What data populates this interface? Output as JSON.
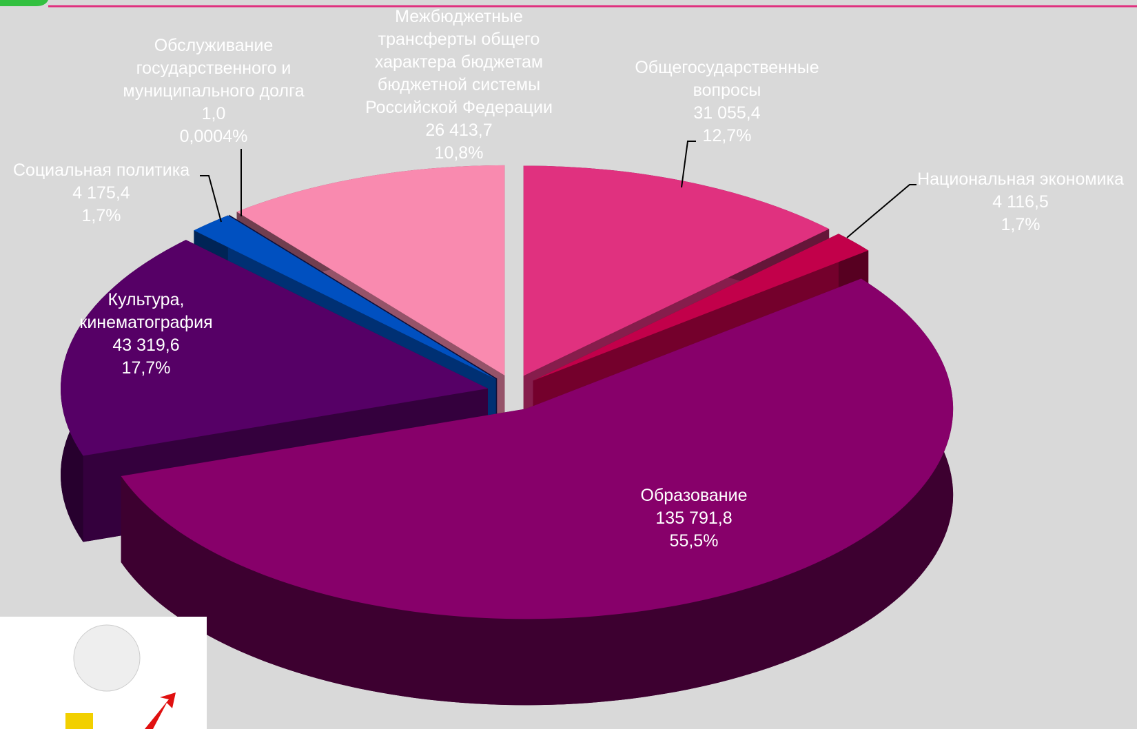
{
  "chart_data": {
    "type": "pie3d",
    "categories": [
      "Общегосударственные вопросы",
      "Национальная экономика",
      "Образование",
      "Культура, кинематография",
      "Социальная политика",
      "Обслуживание государственного и муниципального долга",
      "Межбюджетные трансферты общего характера бюджетам бюджетной системы Российской Федерации"
    ],
    "amounts": [
      31055.4,
      4116.5,
      135791.8,
      43319.6,
      4175.4,
      1.0,
      26413.7
    ],
    "amount_labels": [
      "31 055,4",
      "4 116,5",
      "135 791,8",
      "43 319,6",
      "4 175,4",
      "1,0",
      "26 413,7"
    ],
    "values": [
      12.7,
      1.7,
      55.5,
      17.7,
      1.7,
      0.0004,
      10.8
    ],
    "value_labels": [
      "12,7%",
      "1,7%",
      "55,5%",
      "17,7%",
      "1,7%",
      "0,0004%",
      "10,8%"
    ],
    "colors": [
      "#e0317f",
      "#c2004a",
      "#87006a",
      "#560066",
      "#0050c0",
      "#1a1a60",
      "#f98aaf"
    ]
  }
}
